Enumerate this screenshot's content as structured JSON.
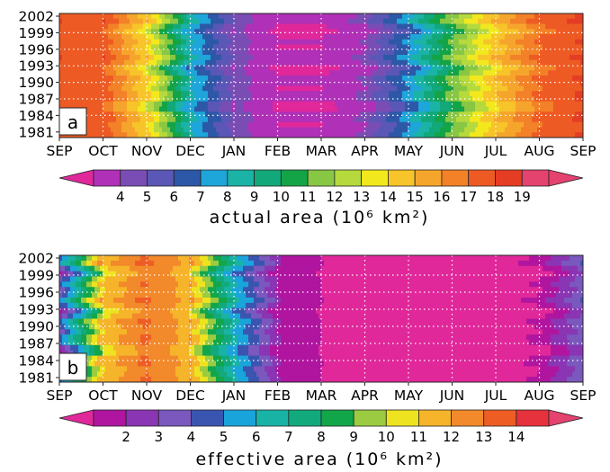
{
  "chart_data": [
    {
      "type": "heatmap",
      "panel_label": "a",
      "y_tick_labels": [
        "2002",
        "1999",
        "1996",
        "1993",
        "1990",
        "1987",
        "1984",
        "1981"
      ],
      "x_tick_labels": [
        "SEP",
        "OCT",
        "NOV",
        "DEC",
        "JAN",
        "FEB",
        "MAR",
        "APR",
        "MAY",
        "JUN",
        "JUL",
        "AUG",
        "SEP"
      ],
      "colorbar_ticks": [
        "4",
        "5",
        "6",
        "7",
        "8",
        "9",
        "10",
        "11",
        "12",
        "13",
        "14",
        "15",
        "16",
        "17",
        "18",
        "19"
      ],
      "colorbar_label": "actual area (10⁶ km²)",
      "grid": true,
      "values_by_month": [
        19,
        18.5,
        15,
        9,
        5.5,
        4,
        4,
        5,
        8,
        12,
        15.5,
        18,
        19
      ],
      "colors": [
        "#e0289a",
        "#b030b8",
        "#7a4db5",
        "#5a57b6",
        "#2d58a8",
        "#1ea5d9",
        "#1ab3a6",
        "#12a87a",
        "#14a448",
        "#88c743",
        "#b6d93d",
        "#f2e81e",
        "#f7c42a",
        "#f6a52c",
        "#f28128",
        "#ee5a24",
        "#e43d24",
        "#e4426f"
      ]
    },
    {
      "type": "heatmap",
      "panel_label": "b",
      "y_tick_labels": [
        "2002",
        "1999",
        "1996",
        "1993",
        "1990",
        "1987",
        "1984",
        "1981"
      ],
      "x_tick_labels": [
        "SEP",
        "OCT",
        "NOV",
        "DEC",
        "JAN",
        "FEB",
        "MAR",
        "APR",
        "MAY",
        "JUN",
        "JUL",
        "AUG",
        "SEP"
      ],
      "colorbar_ticks": [
        "2",
        "3",
        "4",
        "5",
        "6",
        "7",
        "8",
        "9",
        "10",
        "11",
        "12",
        "13",
        "14"
      ],
      "colorbar_label": "effective area (10⁶ km²)",
      "grid": true,
      "values_by_month": [
        4.5,
        12,
        14,
        12.5,
        7,
        3,
        2,
        1.5,
        1.5,
        1.5,
        1.5,
        2,
        4.5
      ],
      "colors": [
        "#e0289a",
        "#b0159f",
        "#8a35b3",
        "#7a58be",
        "#3a55b0",
        "#1aa4dc",
        "#19b3a5",
        "#12aa7d",
        "#12a64a",
        "#9acb41",
        "#eee31f",
        "#f6b42a",
        "#f2892a",
        "#ee5d24",
        "#e5323c",
        "#e4426f"
      ]
    }
  ]
}
